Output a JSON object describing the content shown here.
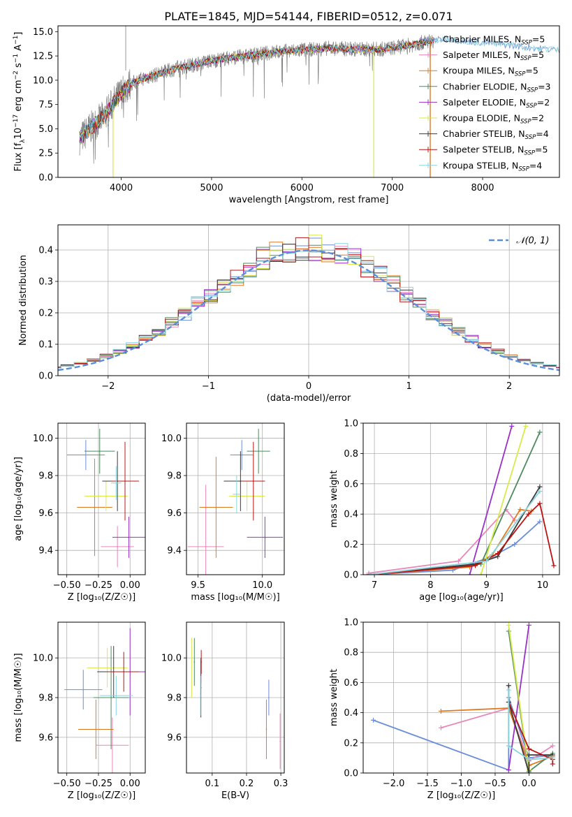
{
  "chart_data": [
    {
      "id": "spectrum",
      "type": "line",
      "title": "PLATE=1845, MJD=54144, FIBERID=0512, z=0.071",
      "xlabel": "wavelength [Angstrom, rest frame]",
      "ylabel": "Flux [f_λ10⁻¹⁷ erg cm⁻² s⁻¹ A⁻¹]",
      "xlim": [
        3300,
        8850
      ],
      "ylim": [
        0,
        15.6
      ],
      "xticks": [
        4000,
        5000,
        6000,
        7000,
        8000
      ],
      "yticks": [
        0.0,
        2.5,
        5.0,
        7.5,
        10.0,
        12.5,
        15.0
      ],
      "grid": false,
      "legend_position": "right",
      "legend": [
        {
          "label": "Chabrier MILES, N_SSP=5",
          "color": "#6a8ed8"
        },
        {
          "label": "Salpeter MILES, N_SSP=5",
          "color": "#e887b8"
        },
        {
          "label": "Kroupa MILES, N_SSP=5",
          "color": "#e07a22"
        },
        {
          "label": "Chabrier ELODIE, N_SSP=3",
          "color": "#4e8a5e"
        },
        {
          "label": "Salpeter ELODIE, N_SSP=2",
          "color": "#9b30c8"
        },
        {
          "label": "Kroupa ELODIE, N_SSP=2",
          "color": "#d8ea4a"
        },
        {
          "label": "Chabrier STELIB, N_SSP=4",
          "color": "#3a3a3a"
        },
        {
          "label": "Salpeter STELIB, N_SSP=5",
          "color": "#b81414"
        },
        {
          "label": "Kroupa STELIB, N_SSP=4",
          "color": "#86d4de"
        }
      ],
      "continuum_points": [
        [
          3550,
          4.0
        ],
        [
          3650,
          5.0
        ],
        [
          3800,
          6.2
        ],
        [
          3900,
          7.5
        ],
        [
          4000,
          8.7
        ],
        [
          4100,
          9.6
        ],
        [
          4250,
          10.2
        ],
        [
          4400,
          10.6
        ],
        [
          4600,
          11.2
        ],
        [
          4800,
          11.6
        ],
        [
          5000,
          12.0
        ],
        [
          5200,
          12.3
        ],
        [
          5400,
          12.5
        ],
        [
          5700,
          12.9
        ],
        [
          6000,
          13.1
        ],
        [
          6300,
          13.3
        ],
        [
          6600,
          13.2
        ],
        [
          6900,
          13.2
        ],
        [
          7200,
          13.6
        ],
        [
          7400,
          14.0
        ],
        [
          7600,
          14.3
        ],
        [
          7800,
          14.0
        ],
        [
          8000,
          13.9
        ],
        [
          8300,
          13.6
        ],
        [
          8600,
          13.3
        ],
        [
          8850,
          13.1
        ]
      ]
    },
    {
      "id": "residuals",
      "type": "histogram",
      "xlabel": "(data-model)/error",
      "ylabel": "Normed distribution",
      "xlim": [
        -2.5,
        2.5
      ],
      "ylim": [
        0,
        0.48
      ],
      "xticks": [
        -2,
        -1,
        0,
        1,
        2
      ],
      "yticks": [
        0.0,
        0.1,
        0.2,
        0.3,
        0.4
      ],
      "grid": true,
      "legend_position": "top-right",
      "legend": [
        {
          "label": "𝒩(0, 1)",
          "color": "#5b8ed8",
          "style": "dashed"
        }
      ]
    },
    {
      "id": "age_vs_z",
      "type": "scatter",
      "xlabel": "Z [log₁₀(Z/Z☉)]",
      "ylabel": "age  [log₁₀(age/yr)]",
      "xlim": [
        -0.57,
        0.12
      ],
      "ylim": [
        9.27,
        10.08
      ],
      "xticks": [
        -0.5,
        -0.25,
        0.0
      ],
      "xtick_labels": [
        "−0.50",
        "−0.25",
        "0.00"
      ],
      "yticks": [
        9.4,
        9.6,
        9.8,
        10.0
      ],
      "grid": true,
      "points": [
        {
          "color": "#6a8ed8",
          "x": -0.35,
          "y": 9.91,
          "dx": 0.15,
          "dy": 0.08
        },
        {
          "color": "#e887b8",
          "x": -0.1,
          "y": 9.42,
          "dx": 0.13,
          "dy": 0.11
        },
        {
          "color": "#e07a22",
          "x": -0.28,
          "y": 9.63,
          "dx": 0.14,
          "dy": 0.26
        },
        {
          "color": "#4e8a5e",
          "x": -0.24,
          "y": 9.93,
          "dx": 0.12,
          "dy": 0.12
        },
        {
          "color": "#9b30c8",
          "x": -0.01,
          "y": 9.47,
          "dx": 0.13,
          "dy": 0.11
        },
        {
          "color": "#d8ea4a",
          "x": -0.19,
          "y": 9.69,
          "dx": 0.17,
          "dy": 0.08
        },
        {
          "color": "#3a3a3a",
          "x": -0.1,
          "y": 9.77,
          "dx": 0.12,
          "dy": 0.16
        },
        {
          "color": "#b81414",
          "x": -0.04,
          "y": 9.77,
          "dx": 0.11,
          "dy": 0.21
        },
        {
          "color": "#86d4de",
          "x": -0.11,
          "y": 9.76,
          "dx": 0.04,
          "dy": 0.09
        }
      ]
    },
    {
      "id": "age_vs_mass",
      "type": "scatter",
      "xlabel": "mass [log₁₀(M/M☉)]",
      "ylabel": "",
      "xlim": [
        9.41,
        10.17
      ],
      "ylim": [
        9.27,
        10.08
      ],
      "xticks": [
        9.5,
        10.0
      ],
      "xtick_labels": [
        "9.5",
        "10.0"
      ],
      "yticks": [
        9.4,
        9.6,
        9.8,
        10.0
      ],
      "grid": true,
      "points": [
        {
          "color": "#6a8ed8",
          "x": 9.84,
          "y": 9.91,
          "dx": 0.09,
          "dy": 0.08
        },
        {
          "color": "#e887b8",
          "x": 9.56,
          "y": 9.42,
          "dx": 0.14,
          "dy": 0.33
        },
        {
          "color": "#e07a22",
          "x": 9.64,
          "y": 9.63,
          "dx": 0.13,
          "dy": 0.27
        },
        {
          "color": "#4e8a5e",
          "x": 9.97,
          "y": 9.93,
          "dx": 0.09,
          "dy": 0.12
        },
        {
          "color": "#9b30c8",
          "x": 10.02,
          "y": 9.47,
          "dx": 0.14,
          "dy": 0.11
        },
        {
          "color": "#d8ea4a",
          "x": 9.88,
          "y": 9.69,
          "dx": 0.14,
          "dy": 0.08
        },
        {
          "color": "#3a3a3a",
          "x": 9.83,
          "y": 9.77,
          "dx": 0.13,
          "dy": 0.16
        },
        {
          "color": "#b81414",
          "x": 9.93,
          "y": 9.77,
          "dx": 0.09,
          "dy": 0.21
        },
        {
          "color": "#86d4de",
          "x": 9.8,
          "y": 9.7,
          "dx": 0.03,
          "dy": 0.1
        }
      ]
    },
    {
      "id": "mass_weight_vs_age",
      "type": "line",
      "xlabel": "age  [log₁₀(age/yr)]",
      "ylabel": "mass weight",
      "xlim": [
        6.8,
        10.3
      ],
      "ylim": [
        0,
        1
      ],
      "xticks": [
        7,
        8,
        9,
        10
      ],
      "yticks": [
        0.0,
        0.2,
        0.4,
        0.6,
        0.8,
        1.0
      ],
      "grid": true,
      "series": [
        {
          "color": "#6a8ed8",
          "points": [
            [
              6.9,
              0.0
            ],
            [
              8.4,
              0.03
            ],
            [
              9.1,
              0.12
            ],
            [
              9.5,
              0.2
            ],
            [
              9.95,
              0.35
            ]
          ]
        },
        {
          "color": "#e887b8",
          "points": [
            [
              6.9,
              0.01
            ],
            [
              8.5,
              0.09
            ],
            [
              9.35,
              0.43
            ],
            [
              9.5,
              0.36
            ]
          ]
        },
        {
          "color": "#e07a22",
          "points": [
            [
              6.9,
              0.0
            ],
            [
              8.7,
              0.05
            ],
            [
              9.1,
              0.13
            ],
            [
              9.6,
              0.43
            ],
            [
              9.8,
              0.42
            ]
          ]
        },
        {
          "color": "#4e8a5e",
          "points": [
            [
              6.9,
              0.0
            ],
            [
              8.9,
              0.07
            ],
            [
              9.95,
              0.94
            ]
          ]
        },
        {
          "color": "#9b30c8",
          "points": [
            [
              8.7,
              0.0
            ],
            [
              9.45,
              0.98
            ]
          ]
        },
        {
          "color": "#d8ea4a",
          "points": [
            [
              8.9,
              0.0
            ],
            [
              9.7,
              0.98
            ]
          ]
        },
        {
          "color": "#3a3a3a",
          "points": [
            [
              6.9,
              0.0
            ],
            [
              8.8,
              0.07
            ],
            [
              9.2,
              0.12
            ],
            [
              9.95,
              0.58
            ]
          ]
        },
        {
          "color": "#b81414",
          "points": [
            [
              6.9,
              0.0
            ],
            [
              8.8,
              0.06
            ],
            [
              9.2,
              0.14
            ],
            [
              9.75,
              0.4
            ],
            [
              9.95,
              0.47
            ],
            [
              10.2,
              0.06
            ]
          ]
        },
        {
          "color": "#86d4de",
          "points": [
            [
              6.9,
              0.0
            ],
            [
              9.0,
              0.09
            ],
            [
              9.95,
              0.55
            ]
          ]
        }
      ]
    },
    {
      "id": "mass_vs_z",
      "type": "scatter",
      "xlabel": "Z [log₁₀(Z/Z☉)]",
      "ylabel": "mass [log₁₀(M/M☉)]",
      "xlim": [
        -0.57,
        0.12
      ],
      "ylim": [
        9.42,
        10.18
      ],
      "xticks": [
        -0.5,
        -0.25,
        0.0
      ],
      "xtick_labels": [
        "−0.50",
        "−0.25",
        "0.00"
      ],
      "yticks": [
        9.6,
        9.8,
        10.0
      ],
      "grid": true,
      "points": [
        {
          "color": "#6a8ed8",
          "x": -0.37,
          "y": 9.84,
          "dx": 0.15,
          "dy": 0.1
        },
        {
          "color": "#e887b8",
          "x": -0.14,
          "y": 9.56,
          "dx": 0.13,
          "dy": 0.14
        },
        {
          "color": "#e07a22",
          "x": -0.27,
          "y": 9.64,
          "dx": 0.14,
          "dy": 0.15
        },
        {
          "color": "#4e8a5e",
          "x": -0.15,
          "y": 9.8,
          "dx": 0.14,
          "dy": 0.26
        },
        {
          "color": "#9b30c8",
          "x": 0.0,
          "y": 9.93,
          "dx": 0.12,
          "dy": 0.22
        },
        {
          "color": "#d8ea4a",
          "x": -0.18,
          "y": 9.95,
          "dx": 0.16,
          "dy": 0.1
        },
        {
          "color": "#3a3a3a",
          "x": -0.13,
          "y": 9.93,
          "dx": 0.13,
          "dy": 0.13
        },
        {
          "color": "#b81414",
          "x": -0.05,
          "y": 9.93,
          "dx": 0.12,
          "dy": 0.1
        },
        {
          "color": "#86d4de",
          "x": -0.11,
          "y": 9.81,
          "dx": 0.13,
          "dy": 0.1
        }
      ]
    },
    {
      "id": "mass_vs_ebv",
      "type": "scatter",
      "xlabel": "E(B-V)",
      "ylabel": "",
      "xlim": [
        0.025,
        0.31
      ],
      "ylim": [
        9.42,
        10.18
      ],
      "xticks": [
        0.1,
        0.2,
        0.3
      ],
      "xtick_labels": [
        "0.1",
        "0.2",
        "0.3"
      ],
      "yticks": [
        9.6,
        9.8,
        10.0
      ],
      "grid": true,
      "points": [
        {
          "color": "#6a8ed8",
          "x": 0.265,
          "y": 9.8,
          "dx": 0.0,
          "dy": 0.09
        },
        {
          "color": "#e887b8",
          "x": 0.298,
          "y": 9.58,
          "dx": 0.0,
          "dy": 0.14
        },
        {
          "color": "#e07a22",
          "x": 0.258,
          "y": 9.64,
          "dx": 0.0,
          "dy": 0.15
        },
        {
          "color": "#4e8a5e",
          "x": 0.048,
          "y": 9.98,
          "dx": 0.0,
          "dy": 0.12
        },
        {
          "color": "#9b30c8",
          "x": 0.067,
          "y": 9.93,
          "dx": 0.0,
          "dy": 0.06
        },
        {
          "color": "#d8ea4a",
          "x": 0.04,
          "y": 9.95,
          "dx": 0.0,
          "dy": 0.15
        },
        {
          "color": "#3a3a3a",
          "x": 0.067,
          "y": 9.85,
          "dx": 0.0,
          "dy": 0.15
        },
        {
          "color": "#b81414",
          "x": 0.068,
          "y": 9.98,
          "dx": 0.0,
          "dy": 0.06
        },
        {
          "color": "#86d4de",
          "x": 0.066,
          "y": 9.81,
          "dx": 0.0,
          "dy": 0.1
        }
      ]
    },
    {
      "id": "mass_weight_vs_z",
      "type": "line",
      "xlabel": "Z [log₁₀(Z/Z☉)]",
      "ylabel": "mass weight",
      "xlim": [
        -2.45,
        0.45
      ],
      "ylim": [
        0,
        1
      ],
      "xticks": [
        -2.0,
        -1.5,
        -1.0,
        -0.5,
        0.0
      ],
      "xtick_labels": [
        "−2.0",
        "−1.5",
        "−1.0",
        "−0.5",
        "0.0"
      ],
      "yticks": [
        0.0,
        0.2,
        0.4,
        0.6,
        0.8,
        1.0
      ],
      "grid": true,
      "series": [
        {
          "color": "#6a8ed8",
          "points": [
            [
              -2.3,
              0.35
            ],
            [
              -0.3,
              0.02
            ],
            [
              -0.3,
              0.5
            ],
            [
              0.0,
              0.1
            ],
            [
              0.35,
              0.12
            ]
          ]
        },
        {
          "color": "#e887b8",
          "points": [
            [
              -1.3,
              0.3
            ],
            [
              -0.3,
              0.43
            ],
            [
              0.0,
              0.08
            ],
            [
              0.35,
              0.18
            ]
          ]
        },
        {
          "color": "#e07a22",
          "points": [
            [
              -1.3,
              0.41
            ],
            [
              -0.3,
              0.43
            ],
            [
              0.0,
              0.05
            ],
            [
              0.35,
              0.11
            ]
          ]
        },
        {
          "color": "#4e8a5e",
          "points": [
            [
              -0.3,
              0.94
            ],
            [
              0.0,
              0.01
            ],
            [
              0.35,
              0.13
            ]
          ]
        },
        {
          "color": "#9b30c8",
          "points": [
            [
              -0.3,
              0.02
            ],
            [
              0.0,
              0.98
            ]
          ]
        },
        {
          "color": "#d8ea4a",
          "points": [
            [
              -0.3,
              0.98
            ],
            [
              0.0,
              0.02
            ]
          ]
        },
        {
          "color": "#3a3a3a",
          "points": [
            [
              -0.3,
              0.58
            ],
            [
              -0.3,
              0.47
            ],
            [
              0.0,
              0.0
            ],
            [
              0.0,
              0.12
            ],
            [
              0.35,
              0.12
            ]
          ]
        },
        {
          "color": "#b81414",
          "points": [
            [
              -0.3,
              0.47
            ],
            [
              0.0,
              0.16
            ],
            [
              0.35,
              0.09
            ],
            [
              0.35,
              0.06
            ]
          ]
        },
        {
          "color": "#86d4de",
          "points": [
            [
              -0.3,
              0.55
            ],
            [
              -0.3,
              0.18
            ],
            [
              0.0,
              0.09
            ],
            [
              0.35,
              0.1
            ]
          ]
        }
      ]
    }
  ]
}
